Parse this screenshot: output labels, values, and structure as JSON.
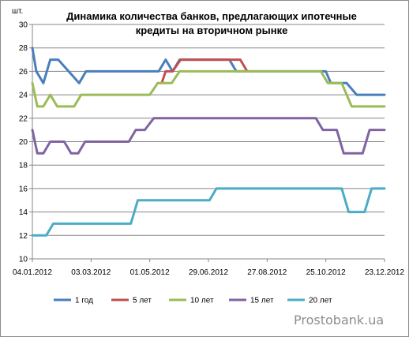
{
  "chart_data": {
    "type": "line",
    "title_lines": [
      "Динамика количества банков, предлагающих ипотечные",
      "кредиты на вторичном рынке"
    ],
    "ylabel": "шт.",
    "xlabel": "",
    "ylim": [
      10,
      30
    ],
    "yticks": [
      10,
      12,
      14,
      16,
      18,
      20,
      22,
      24,
      26,
      28,
      30
    ],
    "xlim": [
      "2012-01-04",
      "2012-12-23"
    ],
    "xticks": [
      "2012-01-04",
      "2012-03-03",
      "2012-05-01",
      "2012-06-29",
      "2012-08-27",
      "2012-10-25",
      "2012-12-23"
    ],
    "xtick_labels": [
      "04.01.2012",
      "03.03.2012",
      "01.05.2012",
      "29.06.2012",
      "27.08.2012",
      "25.10.2012",
      "23.12.2012"
    ],
    "grid": {
      "horizontal": true,
      "vertical": false
    },
    "legend_position": "bottom",
    "series": [
      {
        "name": "1 год",
        "color": "#4a7ebb",
        "points": [
          [
            "2012-01-04",
            28
          ],
          [
            "2012-01-08",
            26
          ],
          [
            "2012-01-15",
            25
          ],
          [
            "2012-01-22",
            27
          ],
          [
            "2012-01-30",
            27
          ],
          [
            "2012-02-20",
            25
          ],
          [
            "2012-02-27",
            26
          ],
          [
            "2012-05-10",
            26
          ],
          [
            "2012-05-17",
            27
          ],
          [
            "2012-05-24",
            26
          ],
          [
            "2012-05-31",
            27
          ],
          [
            "2012-07-20",
            27
          ],
          [
            "2012-07-27",
            26
          ],
          [
            "2012-10-25",
            26
          ],
          [
            "2012-10-30",
            25
          ],
          [
            "2012-11-10",
            25
          ],
          [
            "2012-11-15",
            25
          ],
          [
            "2012-11-25",
            24
          ],
          [
            "2012-12-23",
            24
          ]
        ]
      },
      {
        "name": "5 лет",
        "color": "#c0504d",
        "points": [
          [
            "2012-05-13",
            25
          ],
          [
            "2012-05-17",
            26
          ],
          [
            "2012-05-24",
            26
          ],
          [
            "2012-06-01",
            27
          ],
          [
            "2012-07-31",
            27
          ],
          [
            "2012-08-07",
            26
          ]
        ]
      },
      {
        "name": "10 лет",
        "color": "#9bbb59",
        "points": [
          [
            "2012-01-04",
            25
          ],
          [
            "2012-01-09",
            23
          ],
          [
            "2012-01-15",
            23
          ],
          [
            "2012-01-22",
            24
          ],
          [
            "2012-01-29",
            23
          ],
          [
            "2012-02-15",
            23
          ],
          [
            "2012-02-22",
            24
          ],
          [
            "2012-05-01",
            24
          ],
          [
            "2012-05-09",
            25
          ],
          [
            "2012-05-23",
            25
          ],
          [
            "2012-05-31",
            26
          ],
          [
            "2012-10-20",
            26
          ],
          [
            "2012-10-27",
            25
          ],
          [
            "2012-11-10",
            25
          ],
          [
            "2012-11-20",
            23
          ],
          [
            "2012-12-23",
            23
          ]
        ]
      },
      {
        "name": "15 лет",
        "color": "#8064a2",
        "points": [
          [
            "2012-01-04",
            21
          ],
          [
            "2012-01-09",
            19
          ],
          [
            "2012-01-15",
            19
          ],
          [
            "2012-01-22",
            20
          ],
          [
            "2012-02-05",
            20
          ],
          [
            "2012-02-12",
            19
          ],
          [
            "2012-02-19",
            19
          ],
          [
            "2012-02-26",
            20
          ],
          [
            "2012-04-10",
            20
          ],
          [
            "2012-04-17",
            21
          ],
          [
            "2012-04-26",
            21
          ],
          [
            "2012-05-05",
            22
          ],
          [
            "2012-10-15",
            22
          ],
          [
            "2012-10-22",
            21
          ],
          [
            "2012-11-05",
            21
          ],
          [
            "2012-11-12",
            19
          ],
          [
            "2012-12-01",
            19
          ],
          [
            "2012-12-08",
            21
          ],
          [
            "2012-12-23",
            21
          ]
        ]
      },
      {
        "name": "20 лет",
        "color": "#4bacc6",
        "points": [
          [
            "2012-01-04",
            12
          ],
          [
            "2012-01-18",
            12
          ],
          [
            "2012-01-25",
            13
          ],
          [
            "2012-04-12",
            13
          ],
          [
            "2012-04-19",
            15
          ],
          [
            "2012-06-30",
            15
          ],
          [
            "2012-07-07",
            16
          ],
          [
            "2012-11-10",
            16
          ],
          [
            "2012-11-17",
            14
          ],
          [
            "2012-12-03",
            14
          ],
          [
            "2012-12-10",
            16
          ],
          [
            "2012-12-23",
            16
          ]
        ]
      }
    ]
  },
  "watermark": "Prostobank.ua"
}
